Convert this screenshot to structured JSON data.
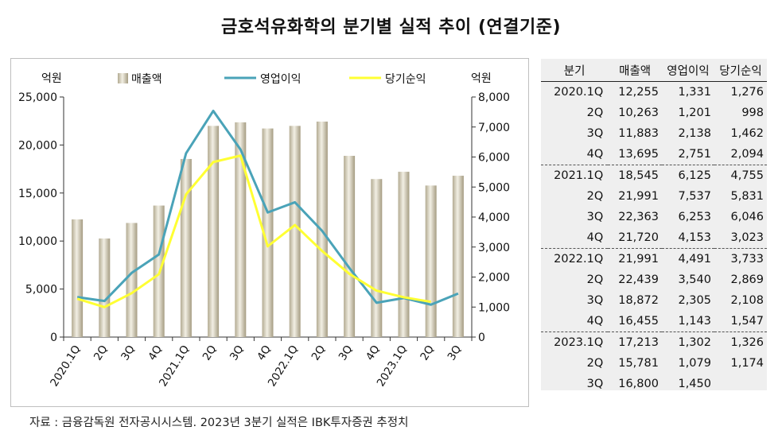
{
  "title": "금호석유화학의 분기별 실적 추이 (연결기준)",
  "source": "자료 : 금융감독원 전자공시시스템. 2023년 3분기 실적은 IBK투자증권 추정치",
  "colors": {
    "revenue": "#c4bca4",
    "operating": "#4aa3b8",
    "net": "#ffff33"
  },
  "chart_data": {
    "type": "bar",
    "categories": [
      "2020.1Q",
      "2Q",
      "3Q",
      "4Q",
      "2021.1Q",
      "2Q",
      "3Q",
      "4Q",
      "2022.1Q",
      "2Q",
      "3Q",
      "4Q",
      "2023.1Q",
      "2Q",
      "3Q"
    ],
    "ylabel_left": "억원",
    "ylabel_right": "억원",
    "ylim_left": [
      0,
      25000
    ],
    "ylim_right": [
      0,
      8000
    ],
    "yticks_left": [
      "0",
      "5,000",
      "10,000",
      "15,000",
      "20,000",
      "25,000"
    ],
    "yticks_right": [
      "0",
      "1,000",
      "2,000",
      "3,000",
      "4,000",
      "5,000",
      "6,000",
      "7,000",
      "8,000"
    ],
    "legend_position": "top",
    "grid": false,
    "series": [
      {
        "name": "매출액",
        "type": "bar",
        "axis": "left",
        "values": [
          12255,
          10263,
          11883,
          13695,
          18545,
          21991,
          22363,
          21720,
          21991,
          22439,
          18872,
          16455,
          17213,
          15781,
          16800
        ]
      },
      {
        "name": "영업이익",
        "type": "line",
        "axis": "right",
        "values": [
          1331,
          1201,
          2138,
          2751,
          6125,
          7537,
          6253,
          4153,
          4491,
          3540,
          2305,
          1143,
          1302,
          1079,
          1450
        ]
      },
      {
        "name": "당기순익",
        "type": "line",
        "axis": "right",
        "values": [
          1276,
          998,
          1462,
          2094,
          4755,
          5831,
          6046,
          3023,
          3733,
          2869,
          2108,
          1547,
          1326,
          1174,
          null
        ]
      }
    ]
  },
  "table": {
    "headers": [
      "분기",
      "매출액",
      "영업이익",
      "당기순익"
    ],
    "rows": [
      [
        "2020.1Q",
        "12,255",
        "1,331",
        "1,276"
      ],
      [
        "2Q",
        "10,263",
        "1,201",
        "998"
      ],
      [
        "3Q",
        "11,883",
        "2,138",
        "1,462"
      ],
      [
        "4Q",
        "13,695",
        "2,751",
        "2,094"
      ],
      [
        "2021.1Q",
        "18,545",
        "6,125",
        "4,755"
      ],
      [
        "2Q",
        "21,991",
        "7,537",
        "5,831"
      ],
      [
        "3Q",
        "22,363",
        "6,253",
        "6,046"
      ],
      [
        "4Q",
        "21,720",
        "4,153",
        "3,023"
      ],
      [
        "2022.1Q",
        "21,991",
        "4,491",
        "3,733"
      ],
      [
        "2Q",
        "22,439",
        "3,540",
        "2,869"
      ],
      [
        "3Q",
        "18,872",
        "2,305",
        "2,108"
      ],
      [
        "4Q",
        "16,455",
        "1,143",
        "1,547"
      ],
      [
        "2023.1Q",
        "17,213",
        "1,302",
        "1,326"
      ],
      [
        "2Q",
        "15,781",
        "1,079",
        "1,174"
      ],
      [
        "3Q",
        "16,800",
        "1,450",
        ""
      ]
    ]
  }
}
